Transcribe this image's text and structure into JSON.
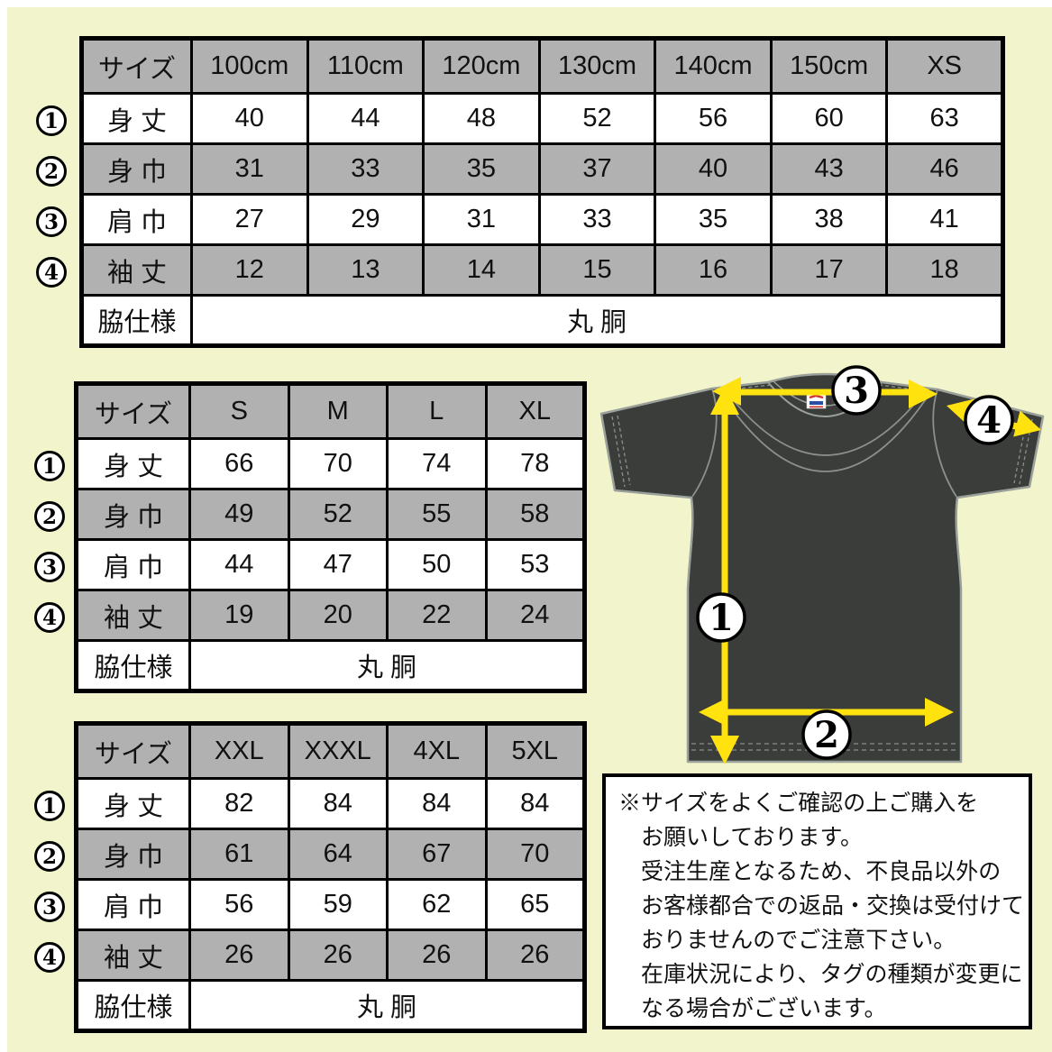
{
  "colors": {
    "background": "#F2F4CB",
    "table_gray": "#B1B1B1",
    "table_white": "#FFFFFF",
    "border_black": "#000000",
    "shirt_body": "#3A3D3A",
    "shirt_seam": "#9AA09A",
    "arrow_yellow": "#FFE20E",
    "tag_red": "#D2312B",
    "tag_blue": "#2A4FA2"
  },
  "tables": [
    {
      "name": "kids",
      "size_header": "サイズ",
      "sizes": [
        "100cm",
        "110cm",
        "120cm",
        "130cm",
        "140cm",
        "150cm",
        "XS"
      ],
      "rows": [
        {
          "marker": "1",
          "label": "身 丈",
          "values": [
            "40",
            "44",
            "48",
            "52",
            "56",
            "60",
            "63"
          ]
        },
        {
          "marker": "2",
          "label": "身 巾",
          "values": [
            "31",
            "33",
            "35",
            "37",
            "40",
            "43",
            "46"
          ]
        },
        {
          "marker": "3",
          "label": "肩 巾",
          "values": [
            "27",
            "29",
            "31",
            "33",
            "35",
            "38",
            "41"
          ]
        },
        {
          "marker": "4",
          "label": "袖 丈",
          "values": [
            "12",
            "13",
            "14",
            "15",
            "16",
            "17",
            "18"
          ]
        }
      ],
      "footer_label": "脇仕様",
      "footer_value": "丸 胴"
    },
    {
      "name": "adult",
      "size_header": "サイズ",
      "sizes": [
        "S",
        "M",
        "L",
        "XL"
      ],
      "rows": [
        {
          "marker": "1",
          "label": "身 丈",
          "values": [
            "66",
            "70",
            "74",
            "78"
          ]
        },
        {
          "marker": "2",
          "label": "身 巾",
          "values": [
            "49",
            "52",
            "55",
            "58"
          ]
        },
        {
          "marker": "3",
          "label": "肩 巾",
          "values": [
            "44",
            "47",
            "50",
            "53"
          ]
        },
        {
          "marker": "4",
          "label": "袖 丈",
          "values": [
            "19",
            "20",
            "22",
            "24"
          ]
        }
      ],
      "footer_label": "脇仕様",
      "footer_value": "丸 胴"
    },
    {
      "name": "big",
      "size_header": "サイズ",
      "sizes": [
        "XXL",
        "XXXL",
        "4XL",
        "5XL"
      ],
      "rows": [
        {
          "marker": "1",
          "label": "身 丈",
          "values": [
            "82",
            "84",
            "84",
            "84"
          ]
        },
        {
          "marker": "2",
          "label": "身 巾",
          "values": [
            "61",
            "64",
            "67",
            "70"
          ]
        },
        {
          "marker": "3",
          "label": "肩 巾",
          "values": [
            "56",
            "59",
            "62",
            "65"
          ]
        },
        {
          "marker": "4",
          "label": "袖 丈",
          "values": [
            "26",
            "26",
            "26",
            "26"
          ]
        }
      ],
      "footer_label": "脇仕様",
      "footer_value": "丸 胴"
    }
  ],
  "diagram": {
    "markers": [
      "1",
      "2",
      "3",
      "4"
    ]
  },
  "note": {
    "lines": [
      "※サイズをよくご確認の上ご購入を",
      "お願いしております。",
      "受注生産となるため、不良品以外の",
      "お客様都合での返品・交換は受付けて",
      "おりませんのでご注意下さい。",
      "在庫状況により、タグの種類が変更に",
      "なる場合がございます。"
    ]
  }
}
